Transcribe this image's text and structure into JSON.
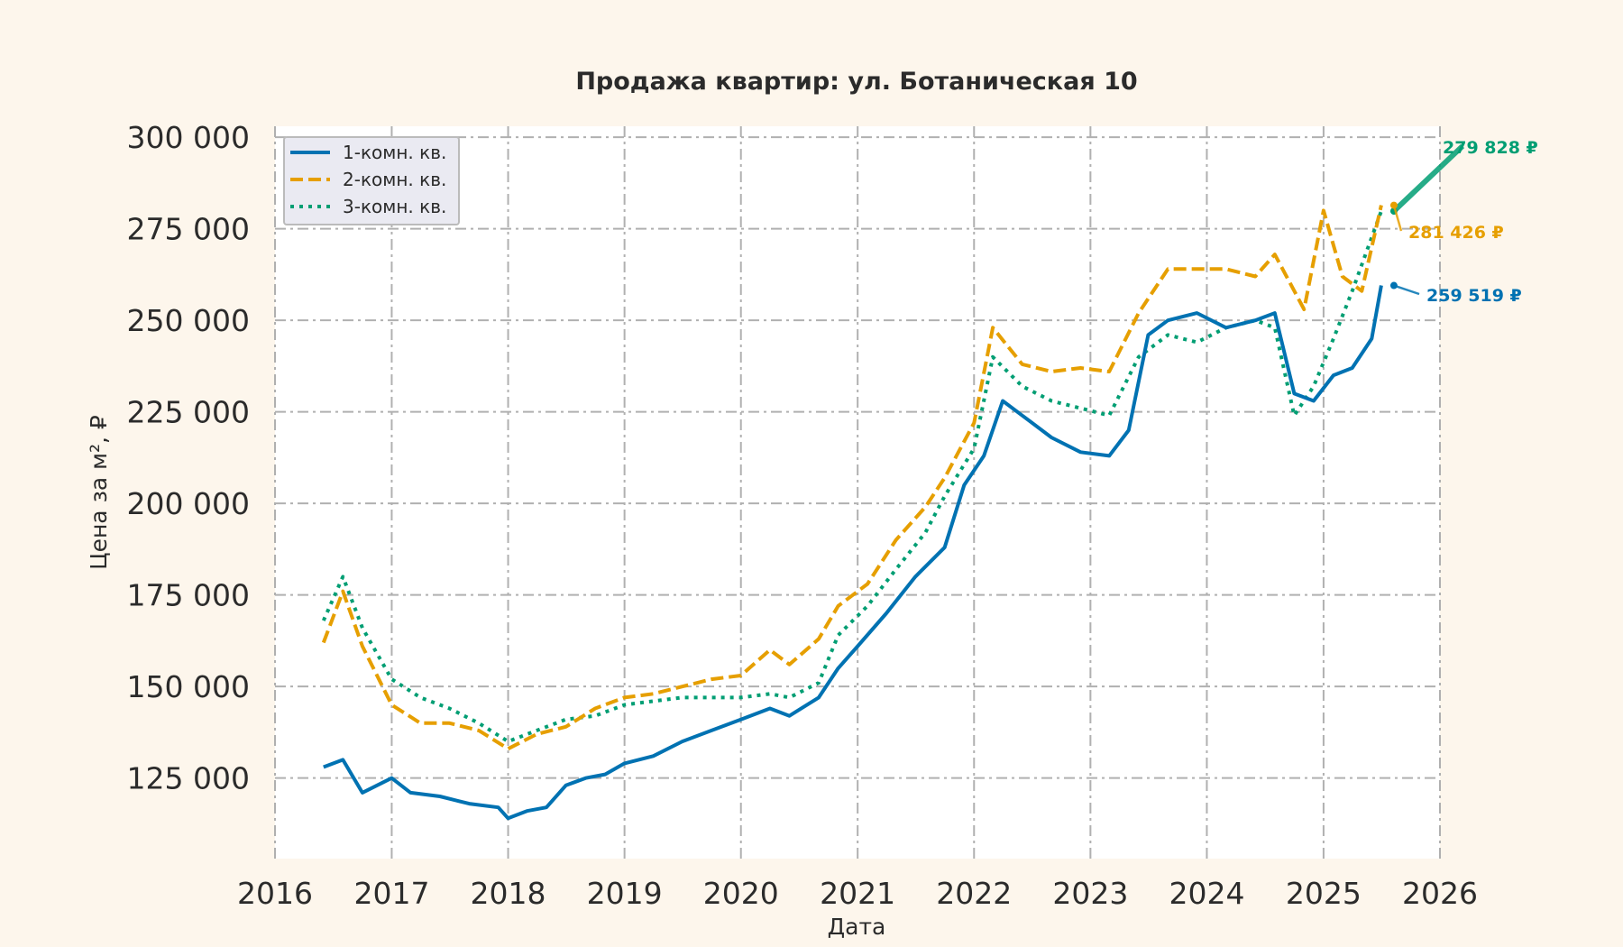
{
  "chart_data": {
    "type": "line",
    "title": "Продажа квартир: ул. Ботаническая 10",
    "xlabel": "Дата",
    "ylabel": "Цена за м², ₽",
    "xlim": [
      "2016-01-01",
      "2026-01-01"
    ],
    "ylim": [
      103000,
      303000
    ],
    "x_ticks": [
      "2016",
      "2017",
      "2018",
      "2019",
      "2020",
      "2021",
      "2022",
      "2023",
      "2024",
      "2025",
      "2026"
    ],
    "y_ticks": [
      "125 000",
      "150 000",
      "175 000",
      "200 000",
      "225 000",
      "250 000",
      "275 000",
      "300 000"
    ],
    "y_tick_values": [
      125000,
      150000,
      175000,
      200000,
      225000,
      250000,
      275000,
      300000
    ],
    "grid": true,
    "legend_position": "top-left",
    "series": [
      {
        "name": "1-комн. кв.",
        "color": "#0072b2",
        "style": "solid",
        "points": [
          [
            "2016-06-01",
            128000
          ],
          [
            "2016-08-01",
            130000
          ],
          [
            "2016-10-01",
            121000
          ],
          [
            "2017-01-01",
            125000
          ],
          [
            "2017-03-01",
            121000
          ],
          [
            "2017-06-01",
            120000
          ],
          [
            "2017-09-01",
            118000
          ],
          [
            "2017-12-01",
            117000
          ],
          [
            "2018-01-01",
            114000
          ],
          [
            "2018-03-01",
            116000
          ],
          [
            "2018-05-01",
            117000
          ],
          [
            "2018-07-01",
            123000
          ],
          [
            "2018-09-01",
            125000
          ],
          [
            "2018-11-01",
            126000
          ],
          [
            "2019-01-01",
            129000
          ],
          [
            "2019-04-01",
            131000
          ],
          [
            "2019-07-01",
            135000
          ],
          [
            "2019-10-01",
            138000
          ],
          [
            "2020-01-01",
            141000
          ],
          [
            "2020-04-01",
            144000
          ],
          [
            "2020-06-01",
            142000
          ],
          [
            "2020-09-01",
            147000
          ],
          [
            "2020-11-01",
            155000
          ],
          [
            "2021-01-01",
            161000
          ],
          [
            "2021-04-01",
            170000
          ],
          [
            "2021-07-01",
            180000
          ],
          [
            "2021-10-01",
            188000
          ],
          [
            "2021-12-01",
            205000
          ],
          [
            "2022-02-01",
            213000
          ],
          [
            "2022-04-01",
            228000
          ],
          [
            "2022-06-01",
            224000
          ],
          [
            "2022-09-01",
            218000
          ],
          [
            "2022-12-01",
            214000
          ],
          [
            "2023-03-01",
            213000
          ],
          [
            "2023-05-01",
            220000
          ],
          [
            "2023-07-01",
            246000
          ],
          [
            "2023-09-01",
            250000
          ],
          [
            "2023-12-01",
            252000
          ],
          [
            "2024-03-01",
            248000
          ],
          [
            "2024-06-01",
            250000
          ],
          [
            "2024-08-01",
            252000
          ],
          [
            "2024-10-01",
            230000
          ],
          [
            "2024-12-01",
            228000
          ],
          [
            "2025-02-01",
            235000
          ],
          [
            "2025-04-01",
            237000
          ],
          [
            "2025-06-01",
            245000
          ],
          [
            "2025-07-01",
            259519
          ]
        ]
      },
      {
        "name": "2-комн. кв.",
        "color": "#e69f00",
        "style": "dashed",
        "points": [
          [
            "2016-06-01",
            162000
          ],
          [
            "2016-08-01",
            176000
          ],
          [
            "2016-10-01",
            161000
          ],
          [
            "2017-01-01",
            145000
          ],
          [
            "2017-04-01",
            140000
          ],
          [
            "2017-07-01",
            140000
          ],
          [
            "2017-10-01",
            138000
          ],
          [
            "2018-01-01",
            133000
          ],
          [
            "2018-04-01",
            137000
          ],
          [
            "2018-07-01",
            139000
          ],
          [
            "2018-10-01",
            144000
          ],
          [
            "2019-01-01",
            147000
          ],
          [
            "2019-04-01",
            148000
          ],
          [
            "2019-07-01",
            150000
          ],
          [
            "2019-10-01",
            152000
          ],
          [
            "2020-01-01",
            153000
          ],
          [
            "2020-04-01",
            160000
          ],
          [
            "2020-06-01",
            156000
          ],
          [
            "2020-09-01",
            163000
          ],
          [
            "2020-11-01",
            172000
          ],
          [
            "2021-02-01",
            178000
          ],
          [
            "2021-05-01",
            190000
          ],
          [
            "2021-08-01",
            199000
          ],
          [
            "2021-10-01",
            207000
          ],
          [
            "2022-01-01",
            222000
          ],
          [
            "2022-03-01",
            248000
          ],
          [
            "2022-06-01",
            238000
          ],
          [
            "2022-09-01",
            236000
          ],
          [
            "2022-12-01",
            237000
          ],
          [
            "2023-03-01",
            236000
          ],
          [
            "2023-06-01",
            252000
          ],
          [
            "2023-09-01",
            264000
          ],
          [
            "2023-12-01",
            264000
          ],
          [
            "2024-03-01",
            264000
          ],
          [
            "2024-06-01",
            262000
          ],
          [
            "2024-08-01",
            268000
          ],
          [
            "2024-11-01",
            253000
          ],
          [
            "2025-01-01",
            280000
          ],
          [
            "2025-03-01",
            262000
          ],
          [
            "2025-05-01",
            258000
          ],
          [
            "2025-07-01",
            281426
          ]
        ]
      },
      {
        "name": "3-комн. кв.",
        "color": "#009e73",
        "style": "dotted",
        "points": [
          [
            "2016-06-01",
            168000
          ],
          [
            "2016-08-01",
            180000
          ],
          [
            "2016-10-01",
            166000
          ],
          [
            "2017-01-01",
            152000
          ],
          [
            "2017-04-01",
            147000
          ],
          [
            "2017-07-01",
            144000
          ],
          [
            "2017-10-01",
            140000
          ],
          [
            "2018-01-01",
            135000
          ],
          [
            "2018-04-01",
            138000
          ],
          [
            "2018-07-01",
            141000
          ],
          [
            "2018-10-01",
            142000
          ],
          [
            "2019-01-01",
            145000
          ],
          [
            "2019-04-01",
            146000
          ],
          [
            "2019-07-01",
            147000
          ],
          [
            "2019-10-01",
            147000
          ],
          [
            "2020-01-01",
            147000
          ],
          [
            "2020-04-01",
            148000
          ],
          [
            "2020-06-01",
            147000
          ],
          [
            "2020-09-01",
            151000
          ],
          [
            "2020-11-01",
            164000
          ],
          [
            "2021-02-01",
            172000
          ],
          [
            "2021-05-01",
            182000
          ],
          [
            "2021-08-01",
            192000
          ],
          [
            "2021-10-01",
            202000
          ],
          [
            "2022-01-01",
            215000
          ],
          [
            "2022-03-01",
            240000
          ],
          [
            "2022-06-01",
            232000
          ],
          [
            "2022-09-01",
            228000
          ],
          [
            "2022-12-01",
            226000
          ],
          [
            "2023-03-01",
            224000
          ],
          [
            "2023-06-01",
            240000
          ],
          [
            "2023-09-01",
            246000
          ],
          [
            "2023-12-01",
            244000
          ],
          [
            "2024-03-01",
            248000
          ],
          [
            "2024-06-01",
            250000
          ],
          [
            "2024-08-01",
            248000
          ],
          [
            "2024-10-01",
            224000
          ],
          [
            "2024-12-01",
            232000
          ],
          [
            "2025-02-01",
            245000
          ],
          [
            "2025-04-01",
            258000
          ],
          [
            "2025-07-01",
            279828
          ]
        ]
      }
    ],
    "annotations": [
      {
        "text": "279 828 ₽",
        "series": 2,
        "color": "#009e73"
      },
      {
        "text": "281 426 ₽",
        "series": 1,
        "color": "#e69f00"
      },
      {
        "text": "259 519 ₽",
        "series": 0,
        "color": "#0072b2"
      }
    ]
  }
}
